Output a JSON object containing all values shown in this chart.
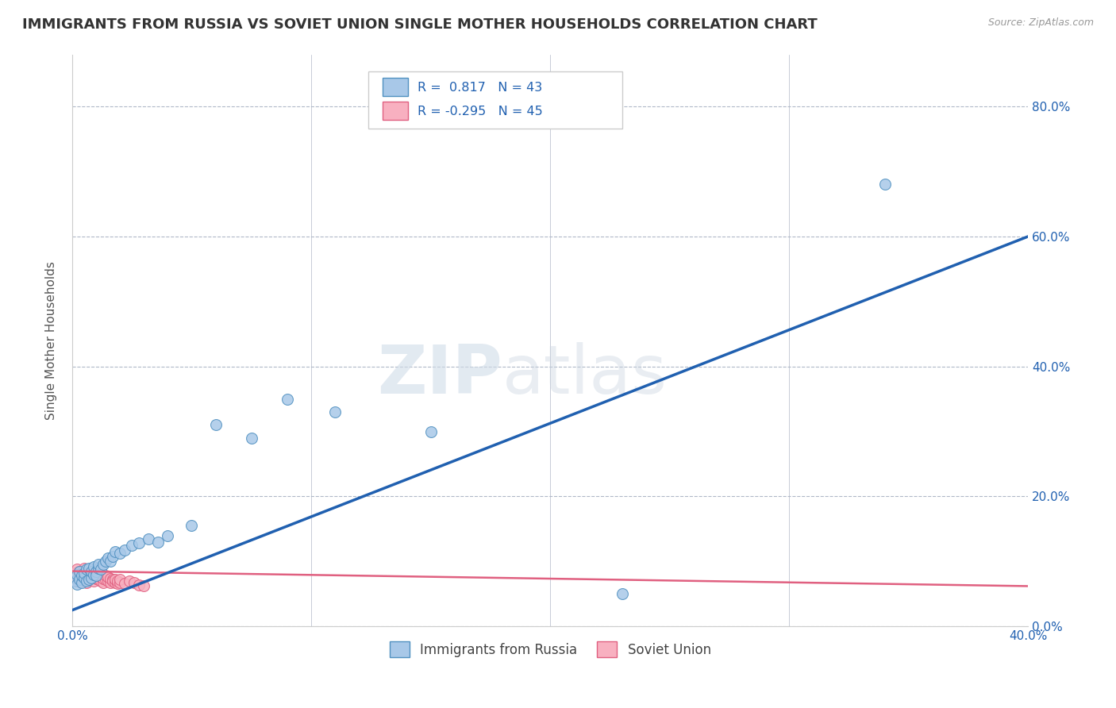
{
  "title": "IMMIGRANTS FROM RUSSIA VS SOVIET UNION SINGLE MOTHER HOUSEHOLDS CORRELATION CHART",
  "source_text": "Source: ZipAtlas.com",
  "ylabel": "Single Mother Households",
  "xlim": [
    0,
    0.4
  ],
  "ylim": [
    0,
    0.88
  ],
  "xticks": [
    0.0,
    0.1,
    0.2,
    0.3,
    0.4
  ],
  "yticks": [
    0.0,
    0.2,
    0.4,
    0.6,
    0.8
  ],
  "xtick_labels": [
    "0.0%",
    "",
    "",
    "",
    "40.0%"
  ],
  "ytick_labels_right": [
    "0.0%",
    "20.0%",
    "40.0%",
    "60.0%",
    "80.0%"
  ],
  "background_color": "#ffffff",
  "grid_color": "#b0b8c8",
  "blue_color": "#a8c8e8",
  "blue_edge_color": "#5090c0",
  "blue_line_color": "#2060b0",
  "pink_color": "#f8b0c0",
  "pink_edge_color": "#e06080",
  "pink_line_color": "#e06080",
  "legend_R1": "0.817",
  "legend_N1": "43",
  "legend_R2": "-0.295",
  "legend_N2": "45",
  "legend_label1": "Immigrants from Russia",
  "legend_label2": "Soviet Union",
  "watermark_zip": "ZIP",
  "watermark_atlas": "atlas",
  "blue_scatter_x": [
    0.001,
    0.002,
    0.002,
    0.003,
    0.003,
    0.004,
    0.004,
    0.005,
    0.005,
    0.006,
    0.006,
    0.007,
    0.007,
    0.008,
    0.008,
    0.009,
    0.009,
    0.01,
    0.01,
    0.011,
    0.011,
    0.012,
    0.013,
    0.014,
    0.015,
    0.016,
    0.017,
    0.018,
    0.02,
    0.022,
    0.025,
    0.028,
    0.032,
    0.036,
    0.04,
    0.05,
    0.06,
    0.075,
    0.09,
    0.11,
    0.15,
    0.23,
    0.34
  ],
  "blue_scatter_y": [
    0.07,
    0.065,
    0.08,
    0.072,
    0.085,
    0.068,
    0.078,
    0.075,
    0.082,
    0.07,
    0.088,
    0.072,
    0.09,
    0.075,
    0.085,
    0.08,
    0.092,
    0.085,
    0.078,
    0.09,
    0.095,
    0.088,
    0.095,
    0.1,
    0.105,
    0.1,
    0.108,
    0.115,
    0.112,
    0.118,
    0.125,
    0.128,
    0.135,
    0.13,
    0.14,
    0.155,
    0.31,
    0.29,
    0.35,
    0.33,
    0.3,
    0.05,
    0.68
  ],
  "pink_scatter_x": [
    0.001,
    0.001,
    0.002,
    0.002,
    0.003,
    0.003,
    0.004,
    0.004,
    0.005,
    0.005,
    0.006,
    0.006,
    0.007,
    0.007,
    0.008,
    0.008,
    0.009,
    0.009,
    0.01,
    0.01,
    0.011,
    0.011,
    0.012,
    0.012,
    0.013,
    0.013,
    0.014,
    0.014,
    0.015,
    0.015,
    0.016,
    0.016,
    0.017,
    0.017,
    0.018,
    0.018,
    0.019,
    0.019,
    0.02,
    0.02,
    0.022,
    0.024,
    0.026,
    0.028,
    0.03
  ],
  "pink_scatter_y": [
    0.075,
    0.082,
    0.07,
    0.088,
    0.078,
    0.085,
    0.072,
    0.08,
    0.075,
    0.09,
    0.068,
    0.085,
    0.072,
    0.08,
    0.076,
    0.082,
    0.07,
    0.078,
    0.074,
    0.08,
    0.072,
    0.078,
    0.07,
    0.076,
    0.068,
    0.074,
    0.072,
    0.078,
    0.07,
    0.076,
    0.068,
    0.074,
    0.072,
    0.07,
    0.068,
    0.072,
    0.066,
    0.07,
    0.068,
    0.072,
    0.066,
    0.07,
    0.068,
    0.064,
    0.062
  ],
  "blue_trend_x": [
    0.0,
    0.4
  ],
  "blue_trend_y": [
    0.025,
    0.6
  ],
  "pink_trend_x": [
    0.0,
    0.4
  ],
  "pink_trend_y": [
    0.085,
    0.062
  ]
}
